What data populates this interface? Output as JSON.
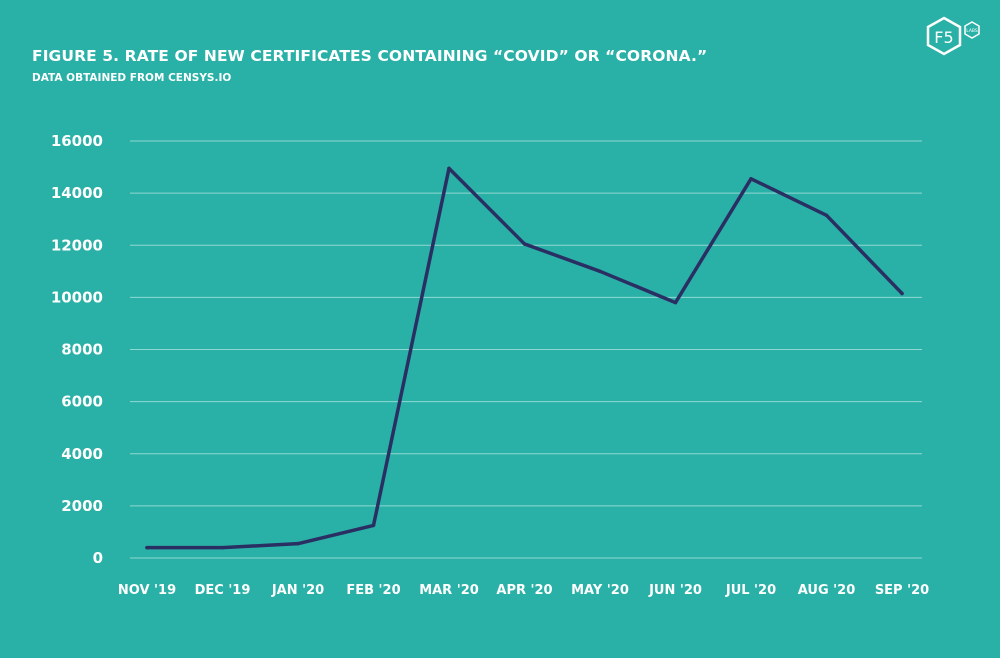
{
  "branding": {
    "logo_text": "F5",
    "logo_subtext": "LABS",
    "logo_icon": "f5-labs-hexagon-icon"
  },
  "chart_data": {
    "type": "line",
    "title": "FIGURE 5. RATE OF NEW CERTIFICATES CONTAINING “COVID” OR “CORONA.”",
    "subtitle": "DATA OBTAINED FROM CENSYS.IO",
    "xlabel": "",
    "ylabel": "",
    "categories": [
      "NOV '19",
      "DEC '19",
      "JAN '20",
      "FEB '20",
      "MAR '20",
      "APR '20",
      "MAY '20",
      "JUN '20",
      "JUL '20",
      "AUG '20",
      "SEP '20"
    ],
    "series": [
      {
        "values": [
          400,
          400,
          550,
          1250,
          14950,
          12050,
          11000,
          9800,
          14550,
          13150,
          10150
        ],
        "color": "#2a2f63"
      }
    ],
    "ylim": [
      0,
      16000
    ],
    "yticks": [
      0,
      2000,
      4000,
      6000,
      8000,
      10000,
      12000,
      14000,
      16000
    ],
    "grid": true,
    "legend": "none",
    "background_color": "#2ab1a7",
    "grid_color": "#8fd8d2"
  }
}
